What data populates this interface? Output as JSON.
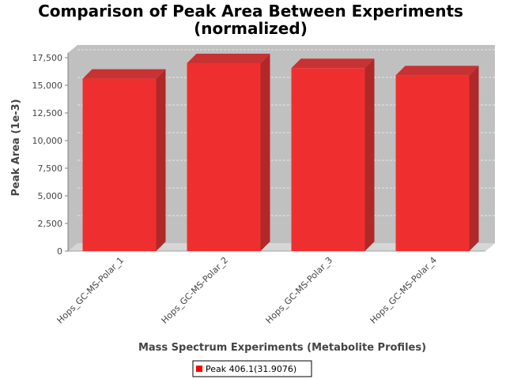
{
  "chart_data": {
    "type": "bar",
    "title_lines": [
      "Comparison of Peak Area Between Experiments",
      "(normalized)"
    ],
    "xlabel": "Mass Spectrum Experiments (Metabolite Profiles)",
    "ylabel": "Peak Area (1e-3)",
    "categories": [
      "Hops_GC-MS-Polar_1",
      "Hops_GC-MS-Polar_2",
      "Hops_GC-MS-Polar_3",
      "Hops_GC-MS-Polar_4"
    ],
    "series": [
      {
        "name": "Peak 406.1(31.9076)",
        "values": [
          15600,
          17000,
          16550,
          15900
        ]
      }
    ],
    "ylim": [
      0,
      18000
    ],
    "yticks": [
      0,
      2500,
      5000,
      7500,
      10000,
      12500,
      15000,
      17500
    ],
    "ytick_labels": [
      "0",
      "2,500",
      "5,000",
      "7,500",
      "10,000",
      "12,500",
      "15,000",
      "17,500"
    ],
    "grid": true,
    "legend_position": "bottom",
    "colors": {
      "bar_front": "#ef2f2f",
      "bar_side": "#b02828",
      "bar_top": "#c83232",
      "plot_back": "#c0c0c0",
      "plot_floor": "#d6d6d6",
      "grid": "#e6e6e6"
    }
  }
}
